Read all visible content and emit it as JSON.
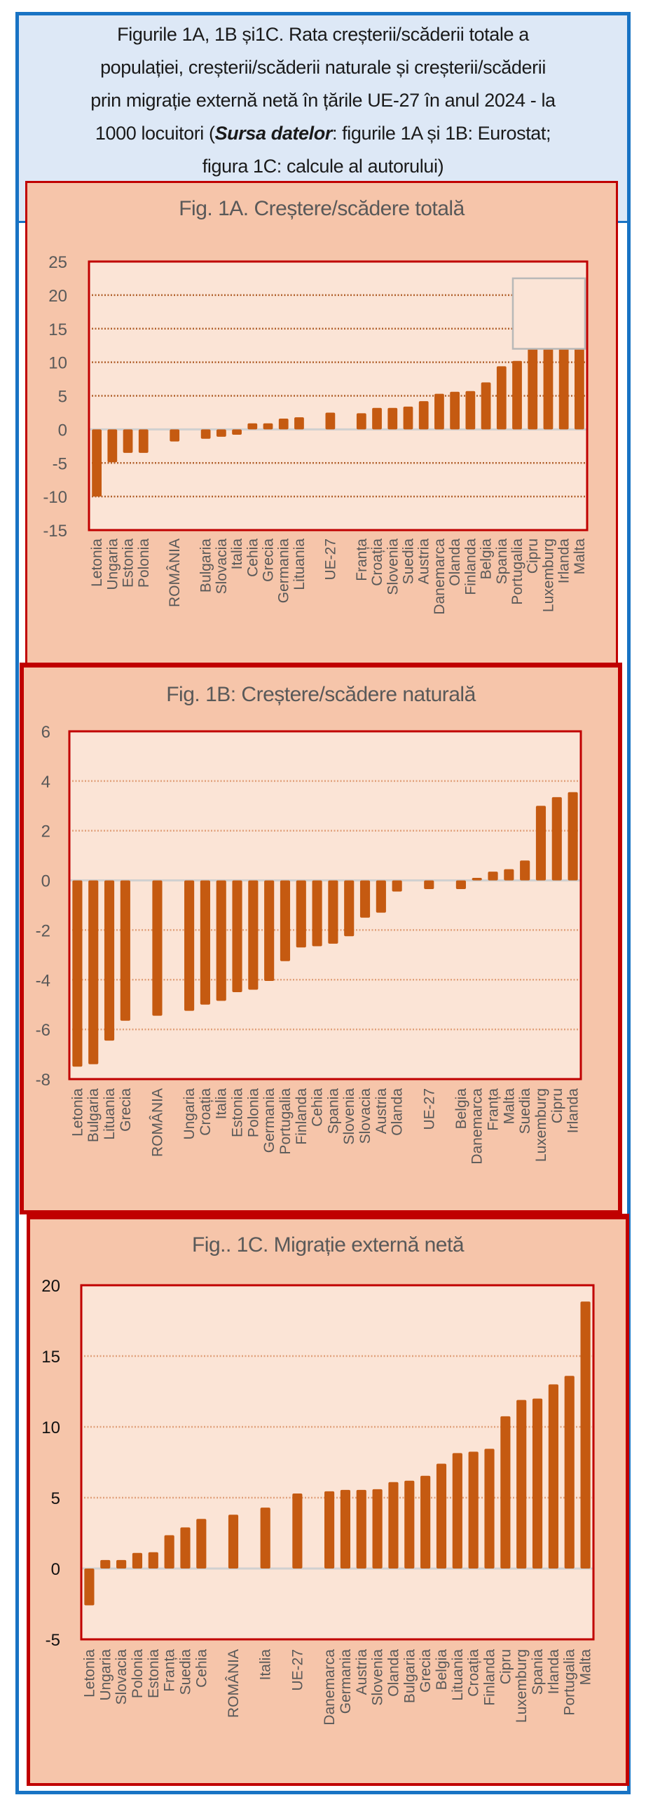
{
  "header": {
    "line1": "Figurile 1A, 1B și1C.  Rata creșterii/scăderii totale a",
    "line2": "populației, creșterii/scăderii naturale și creșterii/scăderii",
    "line3": "prin migrație externă netă în țările UE-27 în anul 2024 - la",
    "line4_pre": "1000 locuitori  (",
    "line4_bold": "Sursa datelor",
    "line4_post": ": figurile 1A și 1B: Eurostat;",
    "line5": "figura 1C: calcule al autorului)"
  },
  "colors": {
    "bar": "#c55a11",
    "plot_bg": "#fbe4d6",
    "panel_bg": "#f6c5aa",
    "frame_red": "#c00000",
    "frame_blue": "#1873c4",
    "header_bg": "#dde8f6"
  },
  "chart_data": [
    {
      "id": "fig1a",
      "type": "bar",
      "title": "Fig. 1A. Creștere/scădere  totală",
      "xlabel": "",
      "ylabel": "",
      "ylim": [
        -15,
        25
      ],
      "yticks": [
        25,
        20,
        15,
        10,
        5,
        0,
        -5,
        -10,
        -15
      ],
      "grid": "dotted-horizontal",
      "legend": "none",
      "note": "A blank grey-bordered box covers the tops of the last four bars (Cipru, Luxemburg, Irlanda, Malta) from about 12 to 22.5",
      "occluder_range": [
        12,
        22.5
      ],
      "categories": [
        "Letonia",
        "Ungaria",
        "Estonia",
        "Polonia",
        "",
        "ROMÂNIA",
        "",
        "Bulgaria",
        "Slovacia",
        "Italia",
        "Cehia",
        "Grecia",
        "Germania",
        "Lituania",
        "",
        "UE-27",
        "",
        "Franța",
        "Croația",
        "Slovenia",
        "Suedia",
        "Austria",
        "Danemarca",
        "Olanda",
        "Finlanda",
        "Belgia",
        "Spania",
        "Portugalia",
        "Cipru",
        "Luxemburg",
        "Irlanda",
        "Malta"
      ],
      "values": [
        -10.0,
        -4.9,
        -3.5,
        -3.5,
        null,
        -1.8,
        null,
        -1.4,
        -1.1,
        -0.8,
        0.9,
        0.9,
        1.6,
        1.8,
        null,
        2.5,
        null,
        2.4,
        3.2,
        3.2,
        3.4,
        4.2,
        5.3,
        5.6,
        5.7,
        7.0,
        9.4,
        10.2,
        14.1,
        14.9,
        16.6,
        19.2
      ]
    },
    {
      "id": "fig1b",
      "type": "bar",
      "title": "Fig. 1B: Creștere/scădere naturală",
      "xlabel": "",
      "ylabel": "",
      "ylim": [
        -8,
        6
      ],
      "yticks": [
        6,
        4,
        2,
        0,
        -2,
        -4,
        -6,
        -8
      ],
      "grid": "dotted-horizontal",
      "legend": "none",
      "categories": [
        "Letonia",
        "Bulgaria",
        "Lituania",
        "Grecia",
        "",
        "ROMÂNIA",
        "",
        "Ungaria",
        "Croația",
        "Italia",
        "Estonia",
        "Polonia",
        "Germania",
        "Portugalia",
        "Finlanda",
        "Cehia",
        "Spania",
        "Slovenia",
        "Slovacia",
        "Austria",
        "Olanda",
        "",
        "UE-27",
        "",
        "Belgia",
        "Danemarca",
        "Franța",
        "Malta",
        "Suedia",
        "Luxemburg",
        "Cipru",
        "Irlanda"
      ],
      "values": [
        -7.5,
        -7.4,
        -6.45,
        -5.65,
        null,
        -5.45,
        null,
        -5.25,
        -5.0,
        -4.85,
        -4.5,
        -4.4,
        -4.05,
        -3.25,
        -2.7,
        -2.65,
        -2.55,
        -2.25,
        -1.5,
        -1.3,
        -0.45,
        null,
        -0.35,
        null,
        -0.35,
        0.1,
        0.35,
        0.45,
        0.8,
        3.0,
        3.35,
        3.55
      ]
    },
    {
      "id": "fig1c",
      "type": "bar",
      "title": "Fig.. 1C. Migrație externă netă",
      "xlabel": "",
      "ylabel": "",
      "ylim": [
        -5,
        20
      ],
      "yticks": [
        20,
        15,
        10,
        5,
        0,
        -5
      ],
      "grid": "dotted-horizontal",
      "legend": "none",
      "categories": [
        "Letonia",
        "Ungaria",
        "Slovacia",
        "Polonia",
        "Estonia",
        "Franța",
        "Suedia",
        "Cehia",
        "",
        "ROMÂNIA",
        "",
        "Italia",
        "",
        "UE-27",
        "",
        "Danemarca",
        "Germania",
        "Austria",
        "Slovenia",
        "Olanda",
        "Bulgaria",
        "Grecia",
        "Belgia",
        "Lituania",
        "Croația",
        "Finlanda",
        "Cipru",
        "Luxemburg",
        "Spania",
        "Irlanda",
        "Portugalia",
        "Malta"
      ],
      "values": [
        -2.6,
        0.6,
        0.6,
        1.1,
        1.15,
        2.35,
        2.9,
        3.5,
        null,
        3.8,
        null,
        4.3,
        null,
        5.3,
        null,
        5.45,
        5.55,
        5.55,
        5.6,
        6.1,
        6.2,
        6.55,
        7.4,
        8.15,
        8.25,
        8.45,
        10.75,
        11.9,
        12.0,
        13.0,
        13.6,
        18.85
      ]
    }
  ]
}
